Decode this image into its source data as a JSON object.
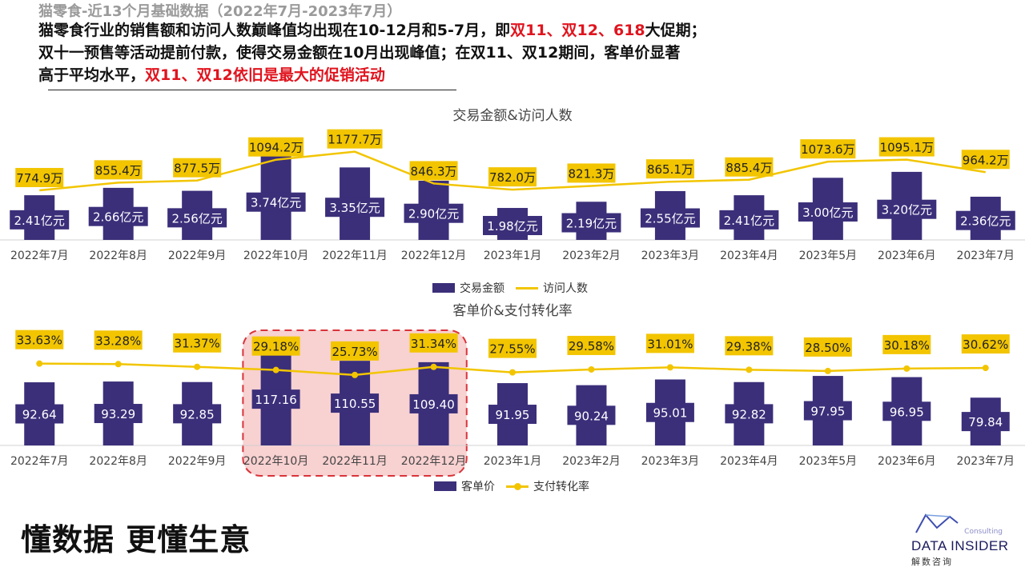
{
  "header": {
    "subtitle": "猫零食-近13个月基础数据（2022年7月-2023年7月）",
    "line1_a": "猫零食行业的销售额和访问人数巅峰值均出现在10-12月和5-7月，即",
    "line1_red": "双11、双12、618",
    "line1_b": "大促期；",
    "line2": "双十一预售等活动提前付款，使得交易金额在10月出现峰值；在双11、双12期间，客单价显著",
    "line3_a": "高于平均水平，",
    "line3_red": "双11、双12依旧是最大的促销活动"
  },
  "colors": {
    "bar": "#3b2f7a",
    "line": "#f2c500",
    "highlight_border": "#d9343a",
    "highlight_fill": "#f7c9c9"
  },
  "chart_data": [
    {
      "type": "bar",
      "title": "交易金额&访问人数",
      "categories": [
        "2022年7月",
        "2022年8月",
        "2022年9月",
        "2022年10月",
        "2022年11月",
        "2022年12月",
        "2023年1月",
        "2023年2月",
        "2023年3月",
        "2023年4月",
        "2023年5月",
        "2023年6月",
        "2023年7月"
      ],
      "series": [
        {
          "name": "交易金额",
          "kind": "bar",
          "unit": "亿元",
          "values": [
            2.41,
            2.66,
            2.56,
            3.74,
            3.35,
            2.9,
            1.98,
            2.19,
            2.55,
            2.41,
            3.0,
            3.2,
            2.36
          ],
          "labels": [
            "2.41亿元",
            "2.66亿元",
            "2.56亿元",
            "3.74亿元",
            "3.35亿元",
            "2.90亿元",
            "1.98亿元",
            "2.19亿元",
            "2.55亿元",
            "2.41亿元",
            "3.00亿元",
            "3.20亿元",
            "2.36亿元"
          ]
        },
        {
          "name": "访问人数",
          "kind": "line",
          "unit": "万",
          "values": [
            774.9,
            855.4,
            877.5,
            1094.2,
            1177.7,
            846.3,
            782.0,
            821.3,
            865.1,
            885.4,
            1073.6,
            1095.1,
            964.2
          ],
          "labels": [
            "774.9万",
            "855.4万",
            "877.5万",
            "1094.2万",
            "1177.7万",
            "846.3万",
            "782.0万",
            "821.3万",
            "865.1万",
            "885.4万",
            "1073.6万",
            "1095.1万",
            "964.2万"
          ]
        }
      ],
      "legend_position": "bottom"
    },
    {
      "type": "bar",
      "title": "客单价&支付转化率",
      "categories": [
        "2022年7月",
        "2022年8月",
        "2022年9月",
        "2022年10月",
        "2022年11月",
        "2022年12月",
        "2023年1月",
        "2023年2月",
        "2023年3月",
        "2023年4月",
        "2023年5月",
        "2023年6月",
        "2023年7月"
      ],
      "series": [
        {
          "name": "客单价",
          "kind": "bar",
          "values": [
            92.64,
            93.29,
            92.85,
            117.16,
            110.55,
            109.4,
            91.95,
            90.24,
            95.01,
            92.82,
            97.95,
            96.95,
            79.84
          ],
          "labels": [
            "92.64",
            "93.29",
            "92.85",
            "117.16",
            "110.55",
            "109.40",
            "91.95",
            "90.24",
            "95.01",
            "92.82",
            "97.95",
            "96.95",
            "79.84"
          ]
        },
        {
          "name": "支付转化率",
          "kind": "line",
          "unit": "%",
          "values": [
            33.63,
            33.28,
            31.37,
            29.18,
            25.73,
            31.34,
            27.55,
            29.58,
            31.01,
            29.38,
            28.5,
            30.18,
            30.62
          ],
          "labels": [
            "33.63%",
            "33.28%",
            "31.37%",
            "29.18%",
            "25.73%",
            "31.34%",
            "27.55%",
            "29.58%",
            "31.01%",
            "29.38%",
            "28.50%",
            "30.18%",
            "30.62%"
          ]
        }
      ],
      "highlight_categories": [
        "2022年10月",
        "2022年11月",
        "2022年12月"
      ],
      "legend_position": "bottom"
    }
  ],
  "footer": {
    "slogan": "懂数据 更懂生意",
    "logo_small": "Consulting",
    "logo_brand": "DATA INSIDER",
    "logo_cn": "解数咨询"
  }
}
